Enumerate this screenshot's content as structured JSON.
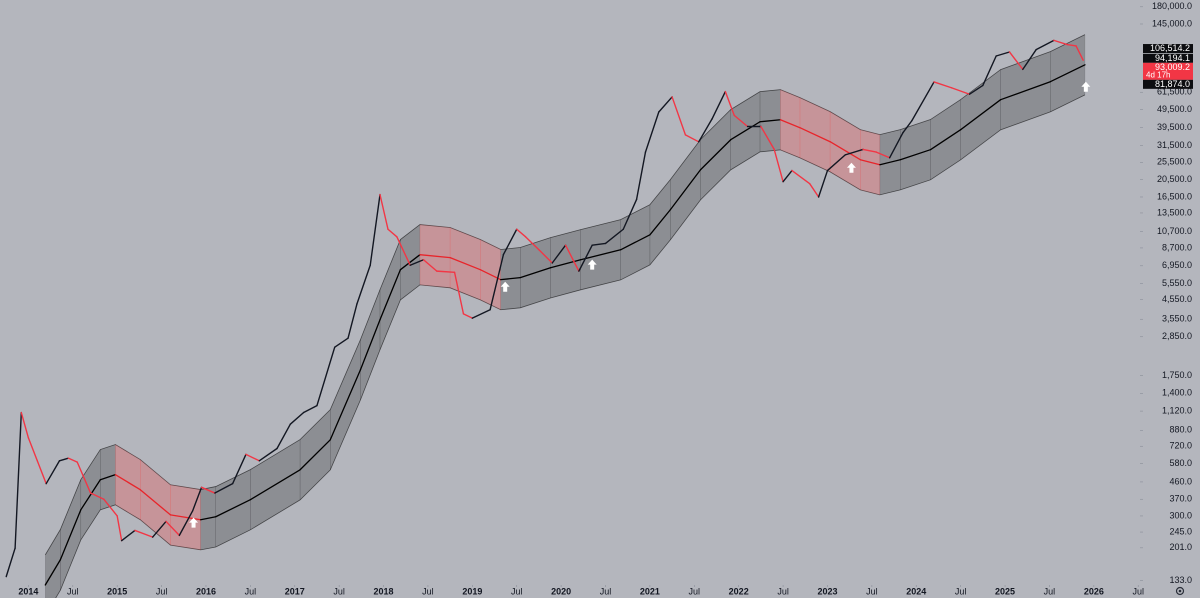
{
  "chart_data": {
    "type": "line",
    "log_scale": true,
    "background": "#b4b6bd",
    "xlim": [
      2013.68,
      2026.52
    ],
    "ylim": [
      126,
      196000
    ],
    "xticks": [
      {
        "value": 2014,
        "label": "2014"
      },
      {
        "value": 2014.5,
        "label": "Jul"
      },
      {
        "value": 2015,
        "label": "2015"
      },
      {
        "value": 2015.5,
        "label": "Jul"
      },
      {
        "value": 2016,
        "label": "2016"
      },
      {
        "value": 2016.5,
        "label": "Jul"
      },
      {
        "value": 2017,
        "label": "2017"
      },
      {
        "value": 2017.5,
        "label": "Jul"
      },
      {
        "value": 2018,
        "label": "2018"
      },
      {
        "value": 2018.5,
        "label": "Jul"
      },
      {
        "value": 2019,
        "label": "2019"
      },
      {
        "value": 2019.5,
        "label": "Jul"
      },
      {
        "value": 2020,
        "label": "2020"
      },
      {
        "value": 2020.5,
        "label": "Jul"
      },
      {
        "value": 2021,
        "label": "2021"
      },
      {
        "value": 2021.5,
        "label": "Jul"
      },
      {
        "value": 2022,
        "label": "2022"
      },
      {
        "value": 2022.5,
        "label": "Jul"
      },
      {
        "value": 2023,
        "label": "2023"
      },
      {
        "value": 2023.5,
        "label": "Jul"
      },
      {
        "value": 2024,
        "label": "2024"
      },
      {
        "value": 2024.5,
        "label": "Jul"
      },
      {
        "value": 2025,
        "label": "2025"
      },
      {
        "value": 2025.5,
        "label": "Jul"
      },
      {
        "value": 2026,
        "label": "2026"
      },
      {
        "value": 2026.5,
        "label": "Jul"
      }
    ],
    "yticks": [
      {
        "value": 180000,
        "label": "180,000.0"
      },
      {
        "value": 145000,
        "label": "145,000.0"
      },
      {
        "value": 61500,
        "label": "61,500.0"
      },
      {
        "value": 49500,
        "label": "49,500.0"
      },
      {
        "value": 39500,
        "label": "39,500.0"
      },
      {
        "value": 31500,
        "label": "31,500.0"
      },
      {
        "value": 25500,
        "label": "25,500.0"
      },
      {
        "value": 20500,
        "label": "20,500.0"
      },
      {
        "value": 16500,
        "label": "16,500.0"
      },
      {
        "value": 13500,
        "label": "13,500.0"
      },
      {
        "value": 10700,
        "label": "10,700.0"
      },
      {
        "value": 8700,
        "label": "8,700.0"
      },
      {
        "value": 6950,
        "label": "6,950.0"
      },
      {
        "value": 5550,
        "label": "5,550.0"
      },
      {
        "value": 4550,
        "label": "4,550.0"
      },
      {
        "value": 3550,
        "label": "3,550.0"
      },
      {
        "value": 2850,
        "label": "2,850.0"
      },
      {
        "value": 1750,
        "label": "1,750.0"
      },
      {
        "value": 1400,
        "label": "1,400.0"
      },
      {
        "value": 1120,
        "label": "1,120.0"
      },
      {
        "value": 880,
        "label": "880.0"
      },
      {
        "value": 720,
        "label": "720.0"
      },
      {
        "value": 580,
        "label": "580.0"
      },
      {
        "value": 460,
        "label": "460.0"
      },
      {
        "value": 370,
        "label": "370.0"
      },
      {
        "value": 300,
        "label": "300.0"
      },
      {
        "value": 245,
        "label": "245.0"
      },
      {
        "value": 201,
        "label": "201.0"
      },
      {
        "value": 133,
        "label": "133.0"
      }
    ],
    "series": [
      {
        "color": "#131722",
        "falling_color": "#f23645",
        "x": [
          2013.75,
          2013.85,
          2013.92,
          2014.0,
          2014.1,
          2014.2,
          2014.35,
          2014.45,
          2014.55,
          2014.7,
          2014.85,
          2015.0,
          2015.05,
          2015.2,
          2015.4,
          2015.55,
          2015.7,
          2015.85,
          2015.95,
          2016.1,
          2016.3,
          2016.45,
          2016.6,
          2016.8,
          2016.95,
          2017.1,
          2017.25,
          2017.45,
          2017.6,
          2017.7,
          2017.85,
          2017.96,
          2018.05,
          2018.15,
          2018.3,
          2018.45,
          2018.6,
          2018.8,
          2018.9,
          2019.0,
          2019.2,
          2019.35,
          2019.5,
          2019.6,
          2019.75,
          2019.9,
          2020.05,
          2020.2,
          2020.35,
          2020.5,
          2020.7,
          2020.85,
          2020.95,
          2021.1,
          2021.25,
          2021.4,
          2021.55,
          2021.7,
          2021.85,
          2021.95,
          2022.1,
          2022.25,
          2022.4,
          2022.5,
          2022.6,
          2022.8,
          2022.9,
          2023.0,
          2023.2,
          2023.4,
          2023.55,
          2023.7,
          2023.85,
          2023.95,
          2024.2,
          2024.4,
          2024.6,
          2024.75,
          2024.9,
          2025.05,
          2025.2,
          2025.35,
          2025.55,
          2025.7,
          2025.8,
          2025.88
        ],
        "values": [
          140,
          200,
          1100,
          800,
          600,
          450,
          600,
          620,
          590,
          400,
          370,
          300,
          220,
          250,
          230,
          280,
          235,
          320,
          430,
          400,
          450,
          650,
          600,
          700,
          950,
          1100,
          1200,
          2500,
          2800,
          4300,
          7000,
          17000,
          11000,
          10000,
          7000,
          7500,
          6500,
          6400,
          3800,
          3600,
          4000,
          8000,
          11000,
          10000,
          8500,
          7200,
          9000,
          6500,
          9000,
          9200,
          11000,
          16000,
          29000,
          48000,
          58000,
          36000,
          33000,
          44000,
          62000,
          46000,
          40000,
          40000,
          30000,
          20000,
          23000,
          19500,
          16500,
          23000,
          28000,
          30000,
          29000,
          27000,
          37000,
          43000,
          70000,
          65000,
          60000,
          67000,
          97000,
          102000,
          82000,
          105000,
          118000,
          112000,
          110000,
          92000
        ]
      },
      {
        "color": "#000000",
        "falling_color": "#e8242a",
        "x": [
          2014.19,
          2014.36,
          2014.59,
          2014.81,
          2014.98,
          2015.26,
          2015.6,
          2015.94,
          2016.11,
          2016.5,
          2017.06,
          2017.4,
          2017.74,
          2017.96,
          2018.19,
          2018.41,
          2018.75,
          2019.09,
          2019.32,
          2019.54,
          2019.88,
          2020.22,
          2020.67,
          2021.0,
          2021.23,
          2021.57,
          2021.91,
          2022.24,
          2022.47,
          2022.69,
          2023.03,
          2023.37,
          2023.59,
          2023.82,
          2024.16,
          2024.5,
          2024.95,
          2025.51,
          2025.9
        ],
        "values": [
          126,
          173,
          324,
          473,
          504,
          417,
          304,
          286,
          297,
          368,
          536,
          781,
          1883,
          3530,
          6620,
          7990,
          7700,
          6620,
          5840,
          5990,
          6780,
          7500,
          8500,
          10260,
          14050,
          23230,
          33870,
          42460,
          43530,
          39390,
          33030,
          26350,
          24740,
          26350,
          29890,
          38420,
          56010,
          70200,
          86860
        ]
      },
      {
        "color": "rgba(0,0,0,0.22)",
        "falling_color": "rgba(242,70,70,0.3)",
        "values": [
          184,
          253,
          473,
          691,
          736,
          609,
          444,
          418,
          434,
          537,
          783,
          1140,
          2750,
          5150,
          9670,
          11670,
          11240,
          9670,
          8530,
          8750,
          9900,
          10950,
          12410,
          14980,
          20510,
          33920,
          49450,
          61990,
          63550,
          57510,
          48220,
          38470,
          36120,
          38470,
          43640,
          56090,
          81770,
          102490,
          126820
        ]
      },
      {
        "color": "rgba(0,0,0,0.22)",
        "falling_color": "rgba(242,70,70,0.3)",
        "values": [
          86,
          118,
          222,
          324,
          345,
          286,
          208,
          196,
          203,
          252,
          367,
          535,
          1290,
          2420,
          4530,
          5470,
          5270,
          4530,
          4000,
          4100,
          4640,
          5140,
          5820,
          7030,
          9620,
          15910,
          23200,
          29080,
          29820,
          26980,
          22620,
          18050,
          16950,
          18050,
          20470,
          26320,
          38360,
          48080,
          59490
        ]
      }
    ],
    "markers": {
      "color": "#ffffff",
      "x": [
        2015.86,
        2019.37,
        2020.35,
        2023.27,
        2025.91
      ],
      "values": [
        276,
        5340,
        7050,
        23810,
        65930
      ]
    },
    "price_labels": [
      {
        "value": 106514.2,
        "label": "106,514.2",
        "color": "#0c0d10"
      },
      {
        "value": 94194.1,
        "label": "94,194.1",
        "color": "#0c0d10"
      },
      {
        "value": 93009.2,
        "label": "93,009.2",
        "sub": "4d 17h",
        "color": "#f23645"
      },
      {
        "value": 81874.0,
        "label": "81,874.0",
        "color": "#0c0d10"
      }
    ]
  }
}
